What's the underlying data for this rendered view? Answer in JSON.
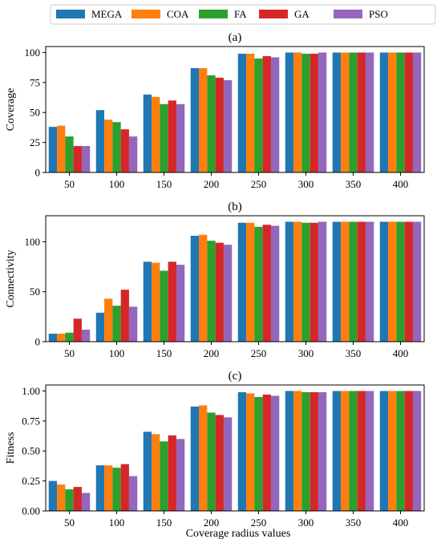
{
  "colors": {
    "MEGA": "#1f77b4",
    "COA": "#ff7f0e",
    "FA": "#2ca02c",
    "GA": "#d62728",
    "PSO": "#9467bd"
  },
  "legend": [
    "MEGA",
    "COA",
    "FA",
    "GA",
    "PSO"
  ],
  "xlabel": "Coverage radius values",
  "chart_data": [
    {
      "type": "bar",
      "title": "(a)",
      "ylabel": "Coverage",
      "categories": [
        "50",
        "100",
        "150",
        "200",
        "250",
        "300",
        "350",
        "400"
      ],
      "ylim": [
        0,
        105
      ],
      "yticks": [
        "0",
        "25",
        "50",
        "75",
        "100"
      ],
      "ytick_values": [
        0,
        25,
        50,
        75,
        100
      ],
      "series": [
        {
          "name": "MEGA",
          "values": [
            38,
            52,
            65,
            87,
            99,
            100,
            100,
            100
          ]
        },
        {
          "name": "COA",
          "values": [
            39,
            44,
            63,
            87,
            99,
            100,
            100,
            100
          ]
        },
        {
          "name": "FA",
          "values": [
            30,
            42,
            57,
            81,
            95,
            99,
            100,
            100
          ]
        },
        {
          "name": "GA",
          "values": [
            22,
            36,
            60,
            79,
            97,
            99,
            100,
            100
          ]
        },
        {
          "name": "PSO",
          "values": [
            22,
            30,
            57,
            77,
            96,
            100,
            100,
            100
          ]
        }
      ]
    },
    {
      "type": "bar",
      "title": "(b)",
      "ylabel": "Connectivity",
      "categories": [
        "50",
        "100",
        "150",
        "200",
        "250",
        "300",
        "350",
        "400"
      ],
      "ylim": [
        0,
        126
      ],
      "yticks": [
        "0",
        "50",
        "100"
      ],
      "ytick_values": [
        0,
        50,
        100
      ],
      "series": [
        {
          "name": "MEGA",
          "values": [
            8,
            29,
            80,
            106,
            119,
            120,
            120,
            120
          ]
        },
        {
          "name": "COA",
          "values": [
            8,
            43,
            79,
            107,
            119,
            120,
            120,
            120
          ]
        },
        {
          "name": "FA",
          "values": [
            9,
            36,
            71,
            101,
            115,
            119,
            120,
            120
          ]
        },
        {
          "name": "GA",
          "values": [
            23,
            52,
            80,
            99,
            117,
            119,
            120,
            120
          ]
        },
        {
          "name": "PSO",
          "values": [
            12,
            35,
            77,
            97,
            116,
            120,
            120,
            120
          ]
        }
      ]
    },
    {
      "type": "bar",
      "title": "(c)",
      "ylabel": "Fitness",
      "categories": [
        "50",
        "100",
        "150",
        "200",
        "250",
        "300",
        "350",
        "400"
      ],
      "ylim": [
        0,
        1.05
      ],
      "yticks": [
        "0.00",
        "0.25",
        "0.50",
        "0.75",
        "1.00"
      ],
      "ytick_values": [
        0,
        0.25,
        0.5,
        0.75,
        1.0
      ],
      "series": [
        {
          "name": "MEGA",
          "values": [
            0.25,
            0.38,
            0.66,
            0.87,
            0.99,
            1.0,
            1.0,
            1.0
          ]
        },
        {
          "name": "COA",
          "values": [
            0.22,
            0.38,
            0.64,
            0.88,
            0.98,
            1.0,
            1.0,
            1.0
          ]
        },
        {
          "name": "FA",
          "values": [
            0.18,
            0.36,
            0.58,
            0.82,
            0.95,
            0.99,
            1.0,
            1.0
          ]
        },
        {
          "name": "GA",
          "values": [
            0.2,
            0.39,
            0.63,
            0.8,
            0.97,
            0.99,
            1.0,
            1.0
          ]
        },
        {
          "name": "PSO",
          "values": [
            0.15,
            0.29,
            0.6,
            0.78,
            0.96,
            0.99,
            1.0,
            1.0
          ]
        }
      ]
    }
  ]
}
